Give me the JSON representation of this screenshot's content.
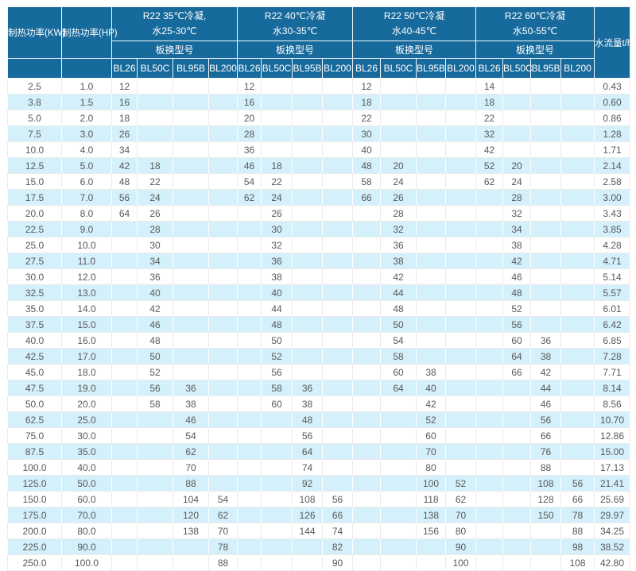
{
  "table": {
    "header": {
      "power_kw": "制热功率(KW)",
      "power_hp": "制热功率(HP)",
      "flow": "水流量t/h",
      "model_label": "板换型号",
      "models": [
        "BL26",
        "BL50C",
        "BL95B",
        "BL200"
      ],
      "groups": [
        {
          "line1": "R22 35℃冷凝,",
          "line2": "水25-30℃"
        },
        {
          "line1": "R22 40℃冷凝",
          "line2": "水30-35℃"
        },
        {
          "line1": "R22 50℃冷凝",
          "line2": "水40-45℃"
        },
        {
          "line1": "R22 60℃冷凝",
          "line2": "水50-55℃"
        }
      ]
    },
    "colors": {
      "header_bg": "#176a9c",
      "header_text": "#ffffff",
      "stripe_bg": "#d4f0fa",
      "body_text": "#595959"
    },
    "rows": [
      {
        "kw": "2.5",
        "hp": "1.0",
        "g1": [
          "12",
          "",
          "",
          ""
        ],
        "g2": [
          "12",
          "",
          "",
          ""
        ],
        "g3": [
          "12",
          "",
          "",
          ""
        ],
        "g4": [
          "14",
          "",
          "",
          ""
        ],
        "flow": "0.43"
      },
      {
        "kw": "3.8",
        "hp": "1.5",
        "g1": [
          "16",
          "",
          "",
          ""
        ],
        "g2": [
          "16",
          "",
          "",
          ""
        ],
        "g3": [
          "18",
          "",
          "",
          ""
        ],
        "g4": [
          "18",
          "",
          "",
          ""
        ],
        "flow": "0.60"
      },
      {
        "kw": "5.0",
        "hp": "2.0",
        "g1": [
          "18",
          "",
          "",
          ""
        ],
        "g2": [
          "20",
          "",
          "",
          ""
        ],
        "g3": [
          "22",
          "",
          "",
          ""
        ],
        "g4": [
          "22",
          "",
          "",
          ""
        ],
        "flow": "0.86"
      },
      {
        "kw": "7.5",
        "hp": "3.0",
        "g1": [
          "26",
          "",
          "",
          ""
        ],
        "g2": [
          "28",
          "",
          "",
          ""
        ],
        "g3": [
          "30",
          "",
          "",
          ""
        ],
        "g4": [
          "32",
          "",
          "",
          ""
        ],
        "flow": "1.28"
      },
      {
        "kw": "10.0",
        "hp": "4.0",
        "g1": [
          "34",
          "",
          "",
          ""
        ],
        "g2": [
          "36",
          "",
          "",
          ""
        ],
        "g3": [
          "40",
          "",
          "",
          ""
        ],
        "g4": [
          "42",
          "",
          "",
          ""
        ],
        "flow": "1.71"
      },
      {
        "kw": "12.5",
        "hp": "5.0",
        "g1": [
          "42",
          "18",
          "",
          ""
        ],
        "g2": [
          "46",
          "18",
          "",
          ""
        ],
        "g3": [
          "48",
          "20",
          "",
          ""
        ],
        "g4": [
          "52",
          "20",
          "",
          ""
        ],
        "flow": "2.14"
      },
      {
        "kw": "15.0",
        "hp": "6.0",
        "g1": [
          "48",
          "22",
          "",
          ""
        ],
        "g2": [
          "54",
          "22",
          "",
          ""
        ],
        "g3": [
          "58",
          "24",
          "",
          ""
        ],
        "g4": [
          "62",
          "24",
          "",
          ""
        ],
        "flow": "2.58"
      },
      {
        "kw": "17.5",
        "hp": "7.0",
        "g1": [
          "56",
          "24",
          "",
          ""
        ],
        "g2": [
          "62",
          "24",
          "",
          ""
        ],
        "g3": [
          "66",
          "26",
          "",
          ""
        ],
        "g4": [
          "",
          "28",
          "",
          ""
        ],
        "flow": "3.00"
      },
      {
        "kw": "20.0",
        "hp": "8.0",
        "g1": [
          "64",
          "26",
          "",
          ""
        ],
        "g2": [
          "",
          "26",
          "",
          ""
        ],
        "g3": [
          "",
          "28",
          "",
          ""
        ],
        "g4": [
          "",
          "32",
          "",
          ""
        ],
        "flow": "3.43"
      },
      {
        "kw": "22.5",
        "hp": "9.0",
        "g1": [
          "",
          "28",
          "",
          ""
        ],
        "g2": [
          "",
          "30",
          "",
          ""
        ],
        "g3": [
          "",
          "32",
          "",
          ""
        ],
        "g4": [
          "",
          "34",
          "",
          ""
        ],
        "flow": "3.85"
      },
      {
        "kw": "25.0",
        "hp": "10.0",
        "g1": [
          "",
          "30",
          "",
          ""
        ],
        "g2": [
          "",
          "32",
          "",
          ""
        ],
        "g3": [
          "",
          "36",
          "",
          ""
        ],
        "g4": [
          "",
          "38",
          "",
          ""
        ],
        "flow": "4.28"
      },
      {
        "kw": "27.5",
        "hp": "11.0",
        "g1": [
          "",
          "34",
          "",
          ""
        ],
        "g2": [
          "",
          "36",
          "",
          ""
        ],
        "g3": [
          "",
          "38",
          "",
          ""
        ],
        "g4": [
          "",
          "42",
          "",
          ""
        ],
        "flow": "4.71"
      },
      {
        "kw": "30.0",
        "hp": "12.0",
        "g1": [
          "",
          "36",
          "",
          ""
        ],
        "g2": [
          "",
          "38",
          "",
          ""
        ],
        "g3": [
          "",
          "42",
          "",
          ""
        ],
        "g4": [
          "",
          "46",
          "",
          ""
        ],
        "flow": "5.14"
      },
      {
        "kw": "32.5",
        "hp": "13.0",
        "g1": [
          "",
          "40",
          "",
          ""
        ],
        "g2": [
          "",
          "40",
          "",
          ""
        ],
        "g3": [
          "",
          "44",
          "",
          ""
        ],
        "g4": [
          "",
          "48",
          "",
          ""
        ],
        "flow": "5.57"
      },
      {
        "kw": "35.0",
        "hp": "14.0",
        "g1": [
          "",
          "42",
          "",
          ""
        ],
        "g2": [
          "",
          "44",
          "",
          ""
        ],
        "g3": [
          "",
          "48",
          "",
          ""
        ],
        "g4": [
          "",
          "52",
          "",
          ""
        ],
        "flow": "6.01"
      },
      {
        "kw": "37.5",
        "hp": "15.0",
        "g1": [
          "",
          "46",
          "",
          ""
        ],
        "g2": [
          "",
          "48",
          "",
          ""
        ],
        "g3": [
          "",
          "50",
          "",
          ""
        ],
        "g4": [
          "",
          "56",
          "",
          ""
        ],
        "flow": "6.42"
      },
      {
        "kw": "40.0",
        "hp": "16.0",
        "g1": [
          "",
          "48",
          "",
          ""
        ],
        "g2": [
          "",
          "50",
          "",
          ""
        ],
        "g3": [
          "",
          "54",
          "",
          ""
        ],
        "g4": [
          "",
          "60",
          "36",
          ""
        ],
        "flow": "6.85"
      },
      {
        "kw": "42.5",
        "hp": "17.0",
        "g1": [
          "",
          "50",
          "",
          ""
        ],
        "g2": [
          "",
          "52",
          "",
          ""
        ],
        "g3": [
          "",
          "58",
          "",
          ""
        ],
        "g4": [
          "",
          "64",
          "38",
          ""
        ],
        "flow": "7.28"
      },
      {
        "kw": "45.0",
        "hp": "18.0",
        "g1": [
          "",
          "52",
          "",
          ""
        ],
        "g2": [
          "",
          "56",
          "",
          ""
        ],
        "g3": [
          "",
          "60",
          "38",
          ""
        ],
        "g4": [
          "",
          "66",
          "42",
          ""
        ],
        "flow": "7.71"
      },
      {
        "kw": "47.5",
        "hp": "19.0",
        "g1": [
          "",
          "56",
          "36",
          ""
        ],
        "g2": [
          "",
          "58",
          "36",
          ""
        ],
        "g3": [
          "",
          "64",
          "40",
          ""
        ],
        "g4": [
          "",
          "",
          "44",
          ""
        ],
        "flow": "8.14"
      },
      {
        "kw": "50.0",
        "hp": "20.0",
        "g1": [
          "",
          "58",
          "38",
          ""
        ],
        "g2": [
          "",
          "60",
          "38",
          ""
        ],
        "g3": [
          "",
          "",
          "42",
          ""
        ],
        "g4": [
          "",
          "",
          "46",
          ""
        ],
        "flow": "8.56"
      },
      {
        "kw": "62.5",
        "hp": "25.0",
        "g1": [
          "",
          "",
          "46",
          ""
        ],
        "g2": [
          "",
          "",
          "48",
          ""
        ],
        "g3": [
          "",
          "",
          "52",
          ""
        ],
        "g4": [
          "",
          "",
          "56",
          ""
        ],
        "flow": "10.70"
      },
      {
        "kw": "75.0",
        "hp": "30.0",
        "g1": [
          "",
          "",
          "54",
          ""
        ],
        "g2": [
          "",
          "",
          "56",
          ""
        ],
        "g3": [
          "",
          "",
          "60",
          ""
        ],
        "g4": [
          "",
          "",
          "66",
          ""
        ],
        "flow": "12.86"
      },
      {
        "kw": "87.5",
        "hp": "35.0",
        "g1": [
          "",
          "",
          "62",
          ""
        ],
        "g2": [
          "",
          "",
          "64",
          ""
        ],
        "g3": [
          "",
          "",
          "70",
          ""
        ],
        "g4": [
          "",
          "",
          "76",
          ""
        ],
        "flow": "15.00"
      },
      {
        "kw": "100.0",
        "hp": "40.0",
        "g1": [
          "",
          "",
          "70",
          ""
        ],
        "g2": [
          "",
          "",
          "74",
          ""
        ],
        "g3": [
          "",
          "",
          "80",
          ""
        ],
        "g4": [
          "",
          "",
          "88",
          ""
        ],
        "flow": "17.13"
      },
      {
        "kw": "125.0",
        "hp": "50.0",
        "g1": [
          "",
          "",
          "88",
          ""
        ],
        "g2": [
          "",
          "",
          "92",
          ""
        ],
        "g3": [
          "",
          "",
          "100",
          "52"
        ],
        "g4": [
          "",
          "",
          "108",
          "56"
        ],
        "flow": "21.41"
      },
      {
        "kw": "150.0",
        "hp": "60.0",
        "g1": [
          "",
          "",
          "104",
          "54"
        ],
        "g2": [
          "",
          "",
          "108",
          "56"
        ],
        "g3": [
          "",
          "",
          "118",
          "62"
        ],
        "g4": [
          "",
          "",
          "128",
          "66"
        ],
        "flow": "25.69"
      },
      {
        "kw": "175.0",
        "hp": "70.0",
        "g1": [
          "",
          "",
          "120",
          "62"
        ],
        "g2": [
          "",
          "",
          "126",
          "66"
        ],
        "g3": [
          "",
          "",
          "138",
          "70"
        ],
        "g4": [
          "",
          "",
          "150",
          "78"
        ],
        "flow": "29.97"
      },
      {
        "kw": "200.0",
        "hp": "80.0",
        "g1": [
          "",
          "",
          "138",
          "70"
        ],
        "g2": [
          "",
          "",
          "144",
          "74"
        ],
        "g3": [
          "",
          "",
          "156",
          "80"
        ],
        "g4": [
          "",
          "",
          "",
          "88"
        ],
        "flow": "34.25"
      },
      {
        "kw": "225.0",
        "hp": "90.0",
        "g1": [
          "",
          "",
          "",
          "78"
        ],
        "g2": [
          "",
          "",
          "",
          "82"
        ],
        "g3": [
          "",
          "",
          "",
          "90"
        ],
        "g4": [
          "",
          "",
          "",
          "98"
        ],
        "flow": "38.52"
      },
      {
        "kw": "250.0",
        "hp": "100.0",
        "g1": [
          "",
          "",
          "",
          "88"
        ],
        "g2": [
          "",
          "",
          "",
          "90"
        ],
        "g3": [
          "",
          "",
          "",
          "100"
        ],
        "g4": [
          "",
          "",
          "",
          "108"
        ],
        "flow": "42.80"
      }
    ]
  }
}
